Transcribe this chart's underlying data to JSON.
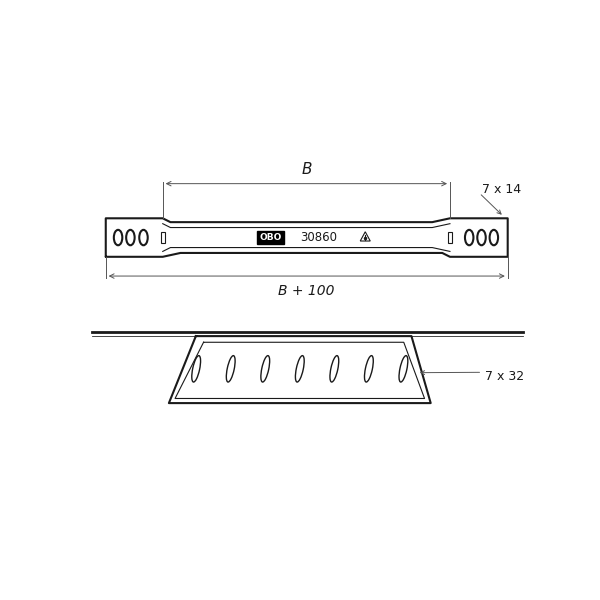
{
  "bg_color": "#ffffff",
  "line_color": "#1a1a1a",
  "dim_color": "#555555",
  "text_color": "#1a1a1a",
  "label_B": "B",
  "label_B100": "B + 100",
  "label_7x14": "7 x 14",
  "label_7x32": "7 x 32",
  "label_30860": "30860",
  "lw_main": 1.5,
  "lw_thin": 0.8,
  "lw_dim": 0.7
}
